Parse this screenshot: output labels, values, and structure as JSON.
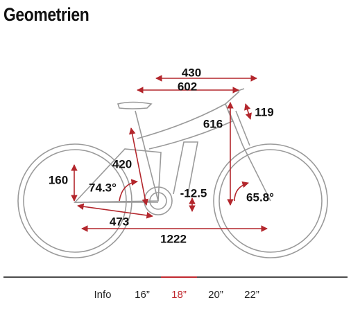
{
  "header": {
    "title": "Geometrien"
  },
  "diagram": {
    "dimensions": [
      "430",
      "602",
      "119",
      "616",
      "420",
      "160",
      "74.3°",
      "-12.5",
      "65.8°",
      "473",
      "1222"
    ]
  },
  "tabs": {
    "items": [
      "Info",
      "16”",
      "18”",
      "20”",
      "22”"
    ]
  }
}
